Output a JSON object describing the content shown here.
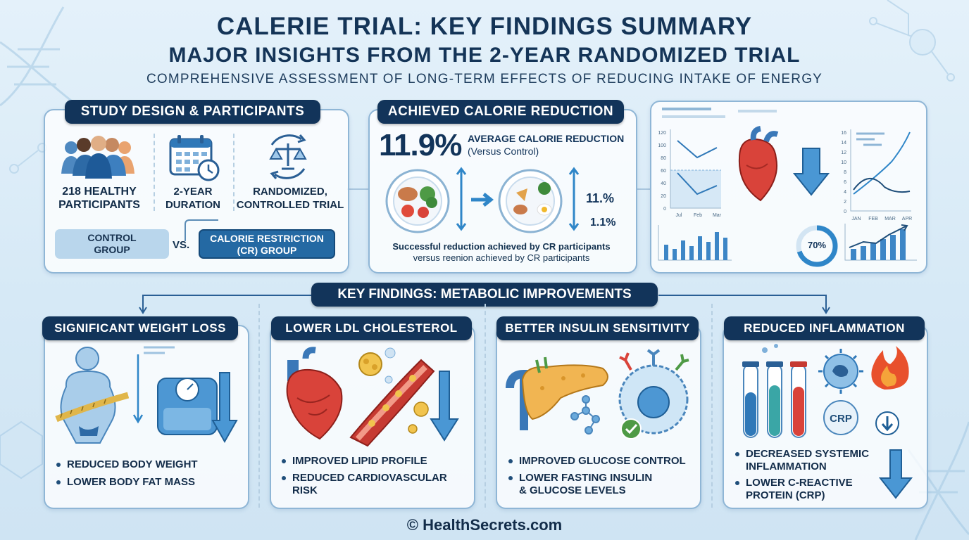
{
  "header": {
    "title": "CALERIE TRIAL: KEY FINDINGS SUMMARY",
    "subtitle": "MAJOR INSIGHTS FROM THE 2-YEAR RANDOMIZED TRIAL",
    "tagline": "COMPREHENSIVE ASSESSMENT OF LONG-TERM EFFECTS OF REDUCING INTAKE OF ENERGY"
  },
  "study_design": {
    "heading": "STUDY DESIGN & PARTICIPANTS",
    "items": [
      {
        "line1": "218 HEALTHY",
        "line2": "PARTICIPANTS",
        "icon": "people-group-icon"
      },
      {
        "line1": "2-YEAR",
        "line2": "DURATION",
        "icon": "calendar-clock-icon"
      },
      {
        "line1": "RANDOMIZED,",
        "line2": "CONTROLLED TRIAL",
        "icon": "balance-scale-icon"
      }
    ],
    "control_line1": "CONTROL",
    "control_line2": "GROUP",
    "vs": "VS.",
    "cr_line1": "CALORIE RESTRICTION",
    "cr_line2": "(CR) GROUP"
  },
  "calorie_reduction": {
    "heading": "ACHIEVED CALORIE REDUCTION",
    "big_value": "11.9%",
    "desc_line1": "AVERAGE CALORIE REDUCTION",
    "desc_line2": "(Versus Control)",
    "side_value1": "11.%",
    "side_value2": "1.1%",
    "note_line1": "Successful reduction achieved by CR participants",
    "note_line2": "versus reenion achieved by CR participants"
  },
  "dashboard": {
    "chart1": {
      "y_ticks": [
        "120",
        "100",
        "80",
        "60",
        "40",
        "20",
        "0"
      ],
      "x_ticks": [
        "Jul",
        "Feb",
        "Mar"
      ]
    },
    "chart2": {
      "y_ticks": [
        "16",
        "14",
        "12",
        "10",
        "8",
        "6",
        "4",
        "2",
        "0"
      ],
      "x_ticks": [
        "JAN",
        "FEB",
        "MAR",
        "APR"
      ]
    },
    "gauge_label": "70%",
    "gauge_fraction": 0.7
  },
  "key_findings_heading": "KEY FINDINGS: METABOLIC IMPROVEMENTS",
  "findings": [
    {
      "heading": "SIGNIFICANT WEIGHT LOSS",
      "bullets": [
        [
          "REDUCED BODY WEIGHT"
        ],
        [
          "LOWER BODY FAT MASS"
        ]
      ]
    },
    {
      "heading": "LOWER LDL CHOLESTEROL",
      "bullets": [
        [
          "IMPROVED LIPID PROFILE"
        ],
        [
          "REDUCED CARDIOVASCULAR",
          "RISK"
        ]
      ]
    },
    {
      "heading": "BETTER INSULIN SENSITIVITY",
      "bullets": [
        [
          "IMPROVED GLUCOSE CONTROL"
        ],
        [
          "LOWER FASTING INSULIN",
          "& GLUCOSE LEVELS"
        ]
      ]
    },
    {
      "heading": "REDUCED INFLAMMATION",
      "bullets": [
        [
          "DECREASED SYSTEMIC",
          "INFLAMMATION"
        ],
        [
          "LOWER C-REACTIVE",
          "PROTEIN (CRP)"
        ]
      ],
      "crp_label": "CRP"
    }
  ],
  "footer": "© HealthSecrets.com",
  "colors": {
    "navy": "#12345a",
    "accent_blue": "#2f86c8",
    "heart_red": "#d9433a"
  }
}
